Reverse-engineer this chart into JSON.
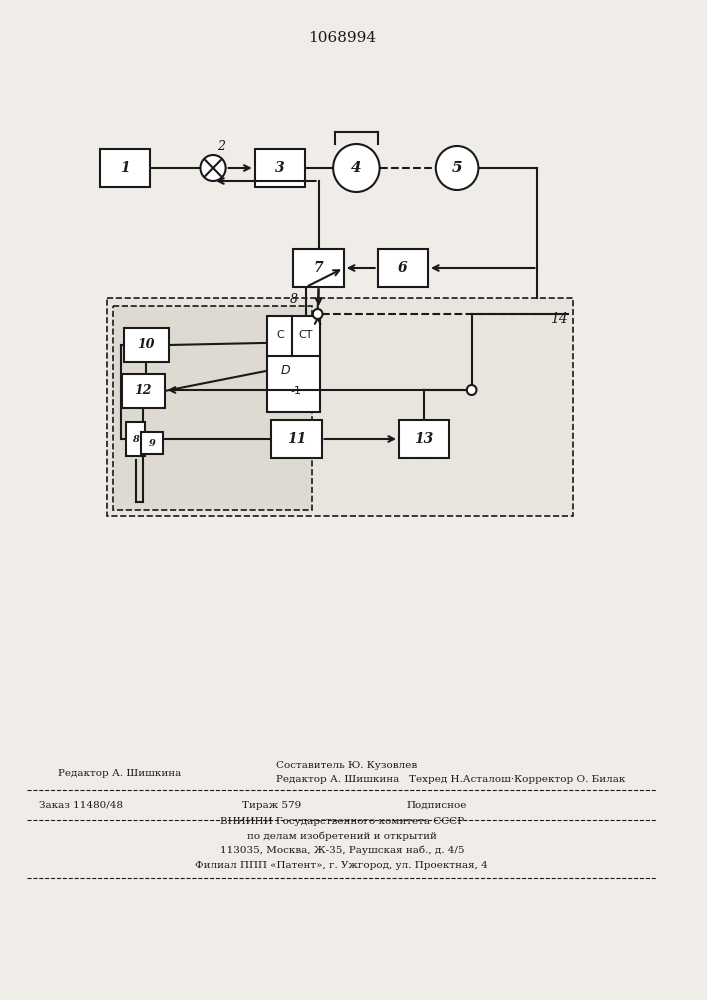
{
  "title": "1068994",
  "bg_color": "#f0ede8",
  "line_color": "#1a1a1a",
  "box_fill": "#ffffff",
  "footer_line1": "Составитель Ю. Кузовлев",
  "footer_line2": "Редактор А. Шишкина   Техред Н.Асталош·Корректор О. Билак",
  "footer_line3a": "Заказ 11480/48",
  "footer_line3b": "Тираж 579",
  "footer_line3c": "Подписное",
  "footer_line4": "ВНИИПИ Государственного комитета СССР",
  "footer_line5": "по делам изобретений и открытий",
  "footer_line6": "113035, Москва, Ж-35, Раушская наб., д. 4/5",
  "footer_line7": "Филиал ППП «Патент», г. Ужгород, ул. Проектная, 4",
  "footer_editor": "Редактор А. Шишкина"
}
